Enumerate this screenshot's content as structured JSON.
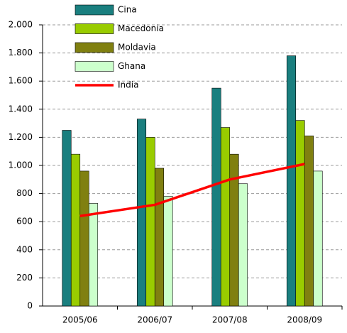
{
  "chart_data": {
    "type": "bar",
    "categories": [
      "2005/06",
      "2006/07",
      "2007/08",
      "2008/09"
    ],
    "series": [
      {
        "name": "Cina",
        "color": "#1a7f7f",
        "type": "bar",
        "values": [
          1250,
          1330,
          1550,
          1780
        ]
      },
      {
        "name": "Macedonia",
        "color": "#99cc00",
        "type": "bar",
        "values": [
          1080,
          1200,
          1270,
          1320
        ]
      },
      {
        "name": "Moldavia",
        "color": "#808010",
        "type": "bar",
        "values": [
          960,
          980,
          1080,
          1210
        ]
      },
      {
        "name": "Ghana",
        "color": "#ccffcc",
        "type": "bar",
        "values": [
          730,
          780,
          870,
          960
        ]
      },
      {
        "name": "India",
        "color": "#ff0000",
        "type": "line",
        "values": [
          640,
          720,
          900,
          1010
        ]
      }
    ],
    "ylim": [
      0,
      2000
    ],
    "yticks": [
      0,
      200,
      400,
      600,
      800,
      {
        "value": 1000,
        "label": "1.000"
      },
      {
        "value": 1200,
        "label": "1.200"
      },
      {
        "value": 1400,
        "label": "1.400"
      },
      {
        "value": 1600,
        "label": "1.600"
      },
      {
        "value": 1800,
        "label": "1.800"
      },
      {
        "value": 2000,
        "label": "2.000"
      }
    ],
    "grid": true
  }
}
